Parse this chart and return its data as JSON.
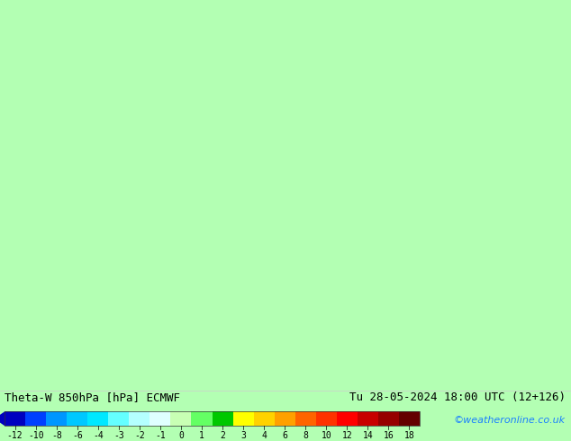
{
  "title_left": "Theta-W 850hPa [hPa] ECMWF",
  "title_right": "Tu 28-05-2024 18:00 UTC (12+126)",
  "credit": "©weatheronline.co.uk",
  "colorbar_tick_labels": [
    "-12",
    "-10",
    "-8",
    "-6",
    "-4",
    "-3",
    "-2",
    "-1",
    "0",
    "1",
    "2",
    "3",
    "4",
    "6",
    "8",
    "10",
    "12",
    "14",
    "16",
    "18"
  ],
  "colorbar_colors": [
    "#0000C0",
    "#0040FF",
    "#0096FF",
    "#00C8FF",
    "#00E8FF",
    "#64FFFF",
    "#B4FFFF",
    "#DFFFFF",
    "#C8FFB4",
    "#64FF64",
    "#00C800",
    "#FFFF00",
    "#FFD200",
    "#FFA000",
    "#FF6400",
    "#FF3200",
    "#FF0000",
    "#C80000",
    "#960000",
    "#640000"
  ],
  "sea_color": "#b3ffb3",
  "land_color": "#e8e8e8",
  "border_color": "#aaaaaa",
  "coast_color": "#888888",
  "text_color_left": "#000000",
  "text_color_right": "#000000",
  "text_color_credit": "#1a80ff",
  "bottom_bg": "#ffffff",
  "extent": [
    22.0,
    55.0,
    22.0,
    42.0
  ],
  "font_size_title": 9,
  "font_size_credit": 8,
  "font_size_colorbar": 7
}
